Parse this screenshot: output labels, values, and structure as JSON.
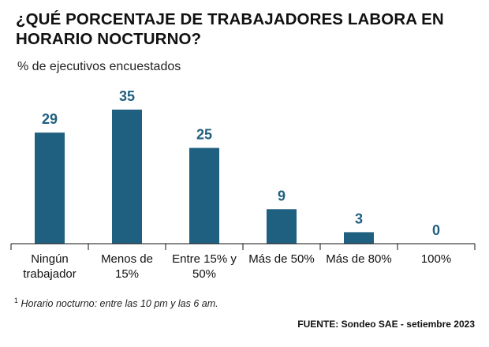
{
  "chart_data": {
    "type": "bar",
    "title": "¿QUÉ PORCENTAJE DE TRABAJADORES LABORA EN HORARIO NOCTURNO?",
    "subtitle": "% de ejecutivos encuestados",
    "categories": [
      [
        "Ningún",
        "trabajador"
      ],
      [
        "Menos de",
        "15%"
      ],
      [
        "Entre 15% y",
        "50%"
      ],
      [
        "Más de 50%"
      ],
      [
        "Más de 80%"
      ],
      [
        "100%"
      ]
    ],
    "values": [
      29,
      35,
      25,
      9,
      3,
      0
    ],
    "xlabel": "",
    "ylabel": "",
    "ylim": [
      0,
      35
    ],
    "grid": false,
    "bar_color": "#1f5f7f",
    "label_color": "#1f5f7f"
  },
  "footnote": {
    "marker": "1",
    "text": "Horario nocturno: entre las 10 pm y las 6 am."
  },
  "source": "FUENTE: Sondeo SAE - setiembre 2023"
}
